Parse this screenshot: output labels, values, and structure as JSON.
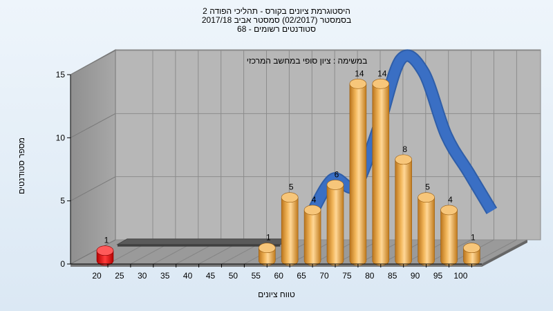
{
  "chart_data": {
    "type": "bar",
    "title_lines": [
      "היסטוגרמת ציונים בקורס - תהליכי הפודה 2",
      "בסמסטר (02/2017) סמסטר אביב 2017/18",
      "סטודנטים רשומים - 68"
    ],
    "annotation": "במשימה : ציון סופי במחשב המרכזי",
    "xlabel": "טווח ציונים",
    "ylabel": "מספר סטודנטים",
    "x_ticks": [
      "20",
      "25",
      "30",
      "35",
      "40",
      "45",
      "50",
      "55",
      "60",
      "65",
      "70",
      "75",
      "80",
      "85",
      "90",
      "95",
      "100"
    ],
    "y_ticks": [
      "0",
      "5",
      "10",
      "15"
    ],
    "ylim": [
      0,
      15
    ],
    "series": [
      {
        "color": "#e8a33a",
        "categories": [
          "20",
          "55",
          "60",
          "65",
          "70",
          "75",
          "80",
          "85",
          "90",
          "95",
          "100"
        ],
        "values": [
          1,
          1,
          5,
          4,
          6,
          14,
          14,
          8,
          5,
          4,
          1
        ],
        "highlight": {
          "category": "20",
          "color": "#e02020"
        }
      },
      {
        "color": "#3a6fc4",
        "style": "smoothed-ribbon",
        "x": [
          "60",
          "65",
          "70",
          "75",
          "80",
          "85",
          "90",
          "95",
          "100"
        ],
        "y": [
          2.5,
          5.5,
          5.0,
          9.5,
          15.0,
          14.0,
          9.0,
          6.0,
          3.0
        ]
      },
      {
        "color": "#6e6e6e",
        "style": "flat-band",
        "x": [
          "20",
          "55"
        ],
        "y": [
          1,
          1
        ]
      }
    ],
    "grid": true,
    "legend": "none"
  }
}
